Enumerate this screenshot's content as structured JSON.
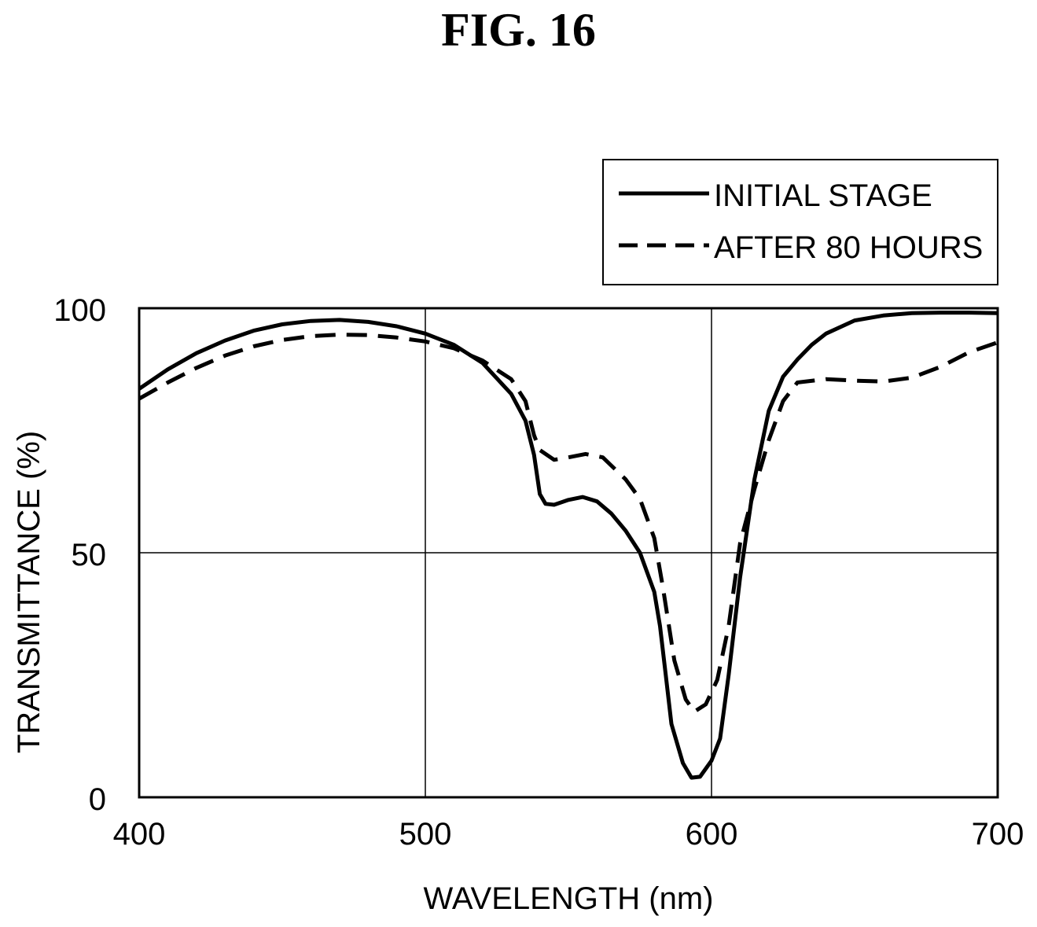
{
  "figure": {
    "title": "FIG. 16"
  },
  "chart_data": {
    "type": "line",
    "title": "FIG. 16",
    "xlabel": "WAVELENGTH (nm)",
    "ylabel": "TRANSMITTANCE (%)",
    "xlim": [
      400,
      700
    ],
    "ylim": [
      0,
      100
    ],
    "xticks": [
      400,
      500,
      600,
      700
    ],
    "yticks": [
      0,
      50,
      100
    ],
    "xtick_labels": [
      "400",
      "500",
      "600",
      "700"
    ],
    "ytick_labels": [
      "0",
      "50",
      "100"
    ],
    "grid": true,
    "legend_position": "top-right, above plot",
    "series": [
      {
        "name": "INITIAL STAGE",
        "style": "solid",
        "color": "#000000",
        "points": [
          [
            400,
            83.5
          ],
          [
            410,
            87.5
          ],
          [
            420,
            90.8
          ],
          [
            430,
            93.4
          ],
          [
            440,
            95.4
          ],
          [
            450,
            96.7
          ],
          [
            460,
            97.4
          ],
          [
            470,
            97.6
          ],
          [
            480,
            97.2
          ],
          [
            490,
            96.3
          ],
          [
            500,
            94.8
          ],
          [
            510,
            92.5
          ],
          [
            520,
            88.8
          ],
          [
            530,
            82.5
          ],
          [
            535,
            77
          ],
          [
            538,
            70
          ],
          [
            540,
            62
          ],
          [
            542,
            60
          ],
          [
            545,
            59.8
          ],
          [
            550,
            60.8
          ],
          [
            555,
            61.4
          ],
          [
            560,
            60.5
          ],
          [
            565,
            58
          ],
          [
            570,
            54.5
          ],
          [
            575,
            50
          ],
          [
            580,
            42
          ],
          [
            582,
            35
          ],
          [
            584,
            25
          ],
          [
            586,
            15
          ],
          [
            590,
            7
          ],
          [
            593,
            4
          ],
          [
            596,
            4.2
          ],
          [
            600,
            7.5
          ],
          [
            603,
            12
          ],
          [
            606,
            25
          ],
          [
            610,
            45
          ],
          [
            615,
            65
          ],
          [
            620,
            79
          ],
          [
            625,
            86
          ],
          [
            630,
            89.5
          ],
          [
            635,
            92.5
          ],
          [
            640,
            94.8
          ],
          [
            650,
            97.5
          ],
          [
            660,
            98.5
          ],
          [
            670,
            99
          ],
          [
            680,
            99.1
          ],
          [
            690,
            99.1
          ],
          [
            700,
            99
          ]
        ]
      },
      {
        "name": "AFTER 80 HOURS",
        "style": "dashed",
        "color": "#000000",
        "points": [
          [
            400,
            81.5
          ],
          [
            410,
            84.8
          ],
          [
            420,
            87.8
          ],
          [
            430,
            90.3
          ],
          [
            440,
            92.2
          ],
          [
            450,
            93.5
          ],
          [
            460,
            94.3
          ],
          [
            470,
            94.6
          ],
          [
            480,
            94.5
          ],
          [
            490,
            94
          ],
          [
            500,
            93.2
          ],
          [
            510,
            91.8
          ],
          [
            520,
            89.3
          ],
          [
            530,
            85.5
          ],
          [
            535,
            81
          ],
          [
            538,
            74
          ],
          [
            540,
            71
          ],
          [
            545,
            69
          ],
          [
            550,
            69.5
          ],
          [
            556,
            70.2
          ],
          [
            562,
            69.5
          ],
          [
            570,
            65
          ],
          [
            575,
            61
          ],
          [
            580,
            53
          ],
          [
            583,
            43
          ],
          [
            587,
            28
          ],
          [
            591,
            20
          ],
          [
            594,
            17.5
          ],
          [
            598,
            19
          ],
          [
            602,
            24
          ],
          [
            606,
            35
          ],
          [
            610,
            52
          ],
          [
            615,
            63
          ],
          [
            620,
            73
          ],
          [
            625,
            81
          ],
          [
            630,
            84.8
          ],
          [
            640,
            85.5
          ],
          [
            650,
            85.2
          ],
          [
            660,
            85
          ],
          [
            670,
            85.8
          ],
          [
            680,
            88
          ],
          [
            690,
            91
          ],
          [
            700,
            93
          ]
        ]
      }
    ]
  }
}
